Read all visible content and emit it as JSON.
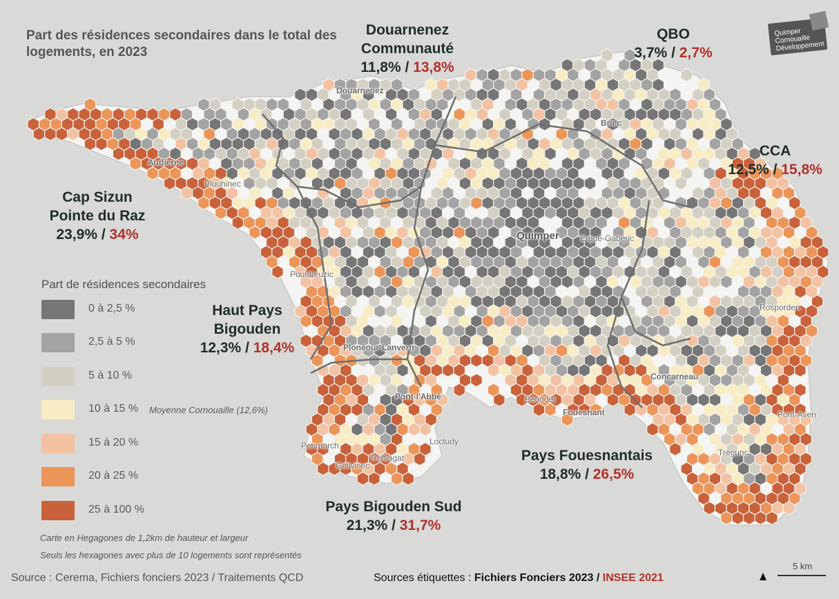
{
  "title": "Part des résidences secondaires dans le total des logements, en 2023",
  "logo": {
    "line1": "Quimper",
    "line2": "Cornouaille",
    "line3": "Développement"
  },
  "zones": [
    {
      "id": "douarnenez",
      "name": "Douarnenez Communauté",
      "value_ff": "11,8%",
      "value_insee": "13,8%"
    },
    {
      "id": "qbo",
      "name": "QBO",
      "value_ff": "3,7%",
      "value_insee": "2,7%"
    },
    {
      "id": "cca",
      "name": "CCA",
      "value_ff": "12,5%",
      "value_insee": "15,8%"
    },
    {
      "id": "cap-sizun",
      "name": "Cap Sizun Pointe du Raz",
      "value_ff": "23,9%",
      "value_insee": "34%"
    },
    {
      "id": "haut-pays-bigouden",
      "name": "Haut Pays Bigouden",
      "value_ff": "12,3%",
      "value_insee": "18,4%"
    },
    {
      "id": "pays-fouesnantais",
      "name": "Pays Fouesnantais",
      "value_ff": "18,8%",
      "value_insee": "26,5%"
    },
    {
      "id": "pays-bigouden-sud",
      "name": "Pays Bigouden Sud",
      "value_ff": "21,3%",
      "value_insee": "31,7%"
    }
  ],
  "towns": [
    "Douarnenez",
    "Briec",
    "Audierne",
    "Plouhinec",
    "Quimper",
    "Ergué-Gabéric",
    "Pouldreuzic",
    "Rosporden",
    "Plonéour-Lanvern",
    "Concarneau",
    "Pont-l'Abbé",
    "Bénodet",
    "Fouesnant",
    "Pont-Aven",
    "Loctudy",
    "Penmarch",
    "Treffiagat",
    "Guilvinec",
    "Trégunc"
  ],
  "legend": {
    "title": "Part de résidences secondaires",
    "classes": [
      {
        "label": "0 à 2,5 %",
        "color": "#767676"
      },
      {
        "label": "2,5 à 5 %",
        "color": "#a3a3a3"
      },
      {
        "label": "5 à 10 %",
        "color": "#d3d0c3"
      },
      {
        "label": "10 à 15 %",
        "color": "#f8ecc4"
      },
      {
        "label": "15 à 20 %",
        "color": "#f3c2a3"
      },
      {
        "label": "20 à 25 %",
        "color": "#ec9558"
      },
      {
        "label": "25 à 100 %",
        "color": "#c9623a"
      }
    ],
    "average_note": "Moyenne Cornouaille (12,6%)"
  },
  "notes": [
    "Carte en Hegagones de 1,2km de hauteur et largeur",
    "Seuls les hexagones avec plus de 10 logements sont représentés"
  ],
  "source": "Source : Cerema, Fichiers fonciers 2023 / Traitements QCD",
  "label_sources": {
    "prefix": "Sources étiquettes :",
    "ff": "Fichiers Fonciers 2023",
    "sep": "/",
    "insee": "INSEE 2021"
  },
  "scale": {
    "label": "5 km"
  },
  "colors": {
    "ff_text": "#1f2d27",
    "insee_text": "#b2312c",
    "sea": "#d9d9d7",
    "land": "#f4f4f2"
  }
}
